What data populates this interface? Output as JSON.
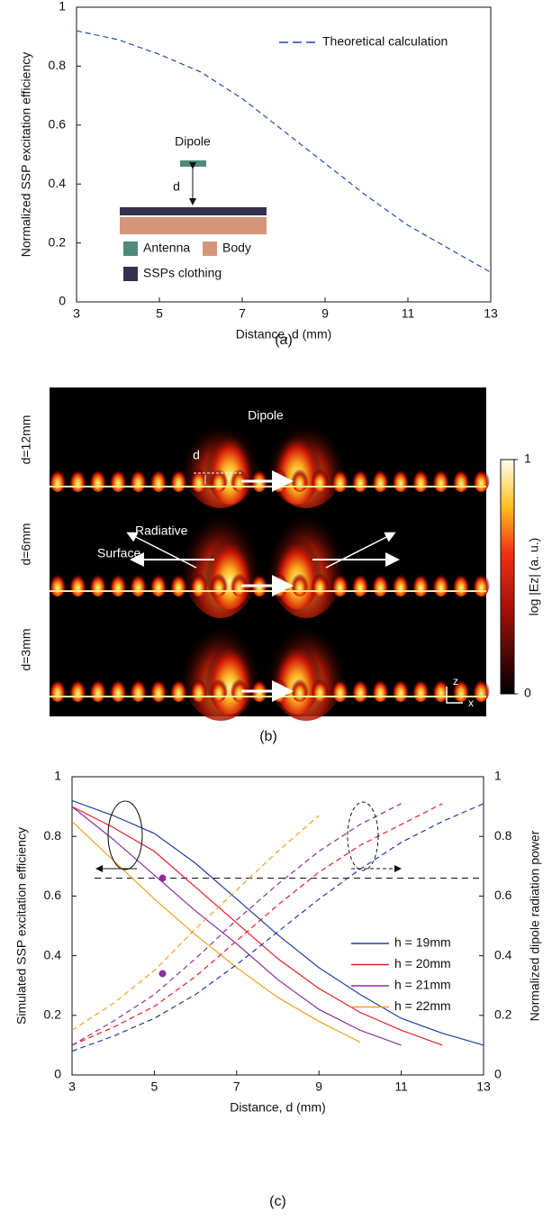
{
  "chart_data": [
    {
      "type": "line",
      "xlabel": "Distance, d (mm)",
      "ylabel": "Normalized SSP excitation efficiency",
      "caption": "(a)",
      "xlim": [
        3,
        13
      ],
      "xticks": [
        3,
        5,
        7,
        9,
        11,
        13
      ],
      "ylim": [
        0,
        1
      ],
      "yticks": [
        0,
        0.2,
        0.4,
        0.6,
        0.8,
        1
      ],
      "series": [
        {
          "name": "Theoretical calculation",
          "color": "#1f4aa8",
          "style": "dashed",
          "x": [
            3,
            4,
            5,
            6,
            7,
            8,
            9,
            10,
            11,
            12,
            13
          ],
          "values": [
            0.92,
            0.89,
            0.84,
            0.78,
            0.69,
            0.58,
            0.47,
            0.36,
            0.26,
            0.18,
            0.1
          ]
        }
      ],
      "inset": {
        "dipole_label": "Dipole",
        "d_label": "d",
        "legend": [
          {
            "name": "Antenna",
            "color": "#4f8a7a"
          },
          {
            "name": "Body",
            "color": "#d4967a"
          },
          {
            "name": "SSPs clothing",
            "color": "#35304f"
          }
        ]
      }
    },
    {
      "type": "heatmap",
      "row_labels": [
        "d=12mm",
        "d=6mm",
        "d=3mm"
      ],
      "annotations": [
        "Dipole",
        "d",
        "Radiative",
        "Surface"
      ],
      "colorbar_label": "log |Ez| (a. u.)",
      "clim": [
        0,
        1
      ],
      "colorbar_ticks": [
        0,
        1
      ],
      "axis_labels": [
        "z",
        "x"
      ],
      "caption": "(b)"
    },
    {
      "type": "line",
      "xlabel": "Distance, d (mm)",
      "ylabel": "Simulated SSP excitation efficiency",
      "y2label": "Normalized  dipole radiation power",
      "caption": "(c)",
      "xlim": [
        3,
        13
      ],
      "xticks": [
        3,
        5,
        7,
        9,
        11,
        13
      ],
      "ylim": [
        0,
        1
      ],
      "yticks": [
        0,
        0.2,
        0.4,
        0.6,
        0.8,
        1
      ],
      "y2lim": [
        0,
        1
      ],
      "y2ticks": [
        0,
        0.2,
        0.4,
        0.6,
        0.8,
        1
      ],
      "hline": 0.66,
      "markers": {
        "x": [
          5.2,
          5.2
        ],
        "values": [
          0.66,
          0.34
        ],
        "color": "#8a2f9e"
      },
      "series": [
        {
          "name": "h = 19mm",
          "color": "#1f3fa0",
          "style": "solid",
          "x": [
            3,
            4,
            5,
            6,
            7,
            8,
            9,
            10,
            11,
            12,
            13
          ],
          "values": [
            0.92,
            0.87,
            0.81,
            0.71,
            0.59,
            0.47,
            0.36,
            0.27,
            0.19,
            0.14,
            0.1
          ]
        },
        {
          "name": "h = 20mm",
          "color": "#e0202a",
          "style": "solid",
          "x": [
            3,
            4,
            5,
            6,
            7,
            8,
            9,
            10,
            11,
            12
          ],
          "values": [
            0.9,
            0.83,
            0.75,
            0.63,
            0.51,
            0.39,
            0.29,
            0.21,
            0.15,
            0.1
          ]
        },
        {
          "name": "h = 21mm",
          "color": "#8a2f9e",
          "style": "solid",
          "x": [
            3,
            4,
            5,
            6,
            7,
            8,
            9,
            10,
            11
          ],
          "values": [
            0.9,
            0.79,
            0.67,
            0.55,
            0.44,
            0.32,
            0.22,
            0.15,
            0.1
          ]
        },
        {
          "name": "h = 22mm",
          "color": "#f0a020",
          "style": "solid",
          "x": [
            3,
            4,
            5,
            6,
            7,
            8,
            9,
            10
          ],
          "values": [
            0.85,
            0.72,
            0.59,
            0.47,
            0.36,
            0.26,
            0.18,
            0.11
          ]
        },
        {
          "color": "#1f3fa0",
          "style": "dashed",
          "axis": "y2",
          "x": [
            3,
            4,
            5,
            6,
            7,
            8,
            9,
            10,
            11,
            12,
            13
          ],
          "values": [
            0.08,
            0.13,
            0.19,
            0.27,
            0.37,
            0.48,
            0.59,
            0.69,
            0.78,
            0.85,
            0.91
          ]
        },
        {
          "color": "#e0202a",
          "style": "dashed",
          "axis": "y2",
          "x": [
            3,
            4,
            5,
            6,
            7,
            8,
            9,
            10,
            11,
            12
          ],
          "values": [
            0.1,
            0.16,
            0.23,
            0.33,
            0.45,
            0.57,
            0.68,
            0.77,
            0.84,
            0.91
          ]
        },
        {
          "color": "#8a2f9e",
          "style": "dashed",
          "axis": "y2",
          "x": [
            3,
            4,
            5,
            6,
            7,
            8,
            9,
            10,
            11
          ],
          "values": [
            0.1,
            0.18,
            0.27,
            0.39,
            0.52,
            0.64,
            0.75,
            0.84,
            0.91
          ]
        },
        {
          "color": "#f0a020",
          "style": "dashed",
          "axis": "y2",
          "x": [
            3,
            4,
            5,
            6,
            7,
            8,
            9
          ],
          "values": [
            0.15,
            0.24,
            0.35,
            0.49,
            0.62,
            0.75,
            0.87
          ]
        }
      ]
    }
  ]
}
